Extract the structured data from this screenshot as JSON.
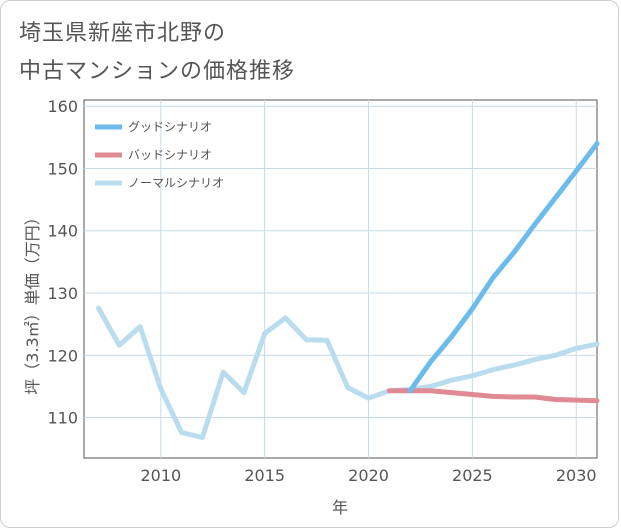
{
  "title_line1": "埼玉県新座市北野の",
  "title_line2": "中古マンションの価格推移",
  "chart_data": {
    "type": "line",
    "xlabel": "年",
    "ylabel": "坪（3.3㎡）単価（万円）",
    "xlim": [
      2006.3,
      2031
    ],
    "ylim": [
      103.5,
      161
    ],
    "xticks": [
      2010,
      2015,
      2020,
      2025,
      2030
    ],
    "yticks": [
      110,
      120,
      130,
      140,
      150,
      160
    ],
    "grid": true,
    "legend_position": "top-left",
    "series": [
      {
        "name": "グッドシナリオ",
        "color": "#6bbbec",
        "x": [
          2022,
          2023,
          2024,
          2025,
          2026,
          2027,
          2028,
          2029,
          2030,
          2031
        ],
        "values": [
          114.3,
          119.0,
          123.0,
          127.5,
          132.5,
          136.5,
          141.0,
          145.3,
          149.6,
          154.0
        ]
      },
      {
        "name": "バッドシナリオ",
        "color": "#e08a93",
        "x": [
          2021,
          2022,
          2023,
          2024,
          2025,
          2026,
          2027,
          2028,
          2029,
          2030,
          2031
        ],
        "values": [
          114.3,
          114.3,
          114.3,
          114.0,
          113.7,
          113.4,
          113.3,
          113.3,
          112.9,
          112.8,
          112.7
        ]
      },
      {
        "name": "ノーマルシナリオ",
        "color": "#b9ddef",
        "x": [
          2007,
          2008,
          2009,
          2010,
          2011,
          2012,
          2013,
          2014,
          2015,
          2016,
          2017,
          2018,
          2019,
          2020,
          2021,
          2022,
          2023,
          2024,
          2025,
          2026,
          2027,
          2028,
          2029,
          2030,
          2031
        ],
        "values": [
          127.6,
          121.6,
          124.6,
          114.6,
          107.6,
          106.8,
          117.3,
          114.0,
          123.5,
          126.0,
          122.5,
          122.4,
          114.8,
          113.1,
          114.3,
          114.5,
          115.0,
          116.0,
          116.7,
          117.7,
          118.4,
          119.3,
          120.0,
          121.1,
          121.8
        ]
      }
    ]
  }
}
